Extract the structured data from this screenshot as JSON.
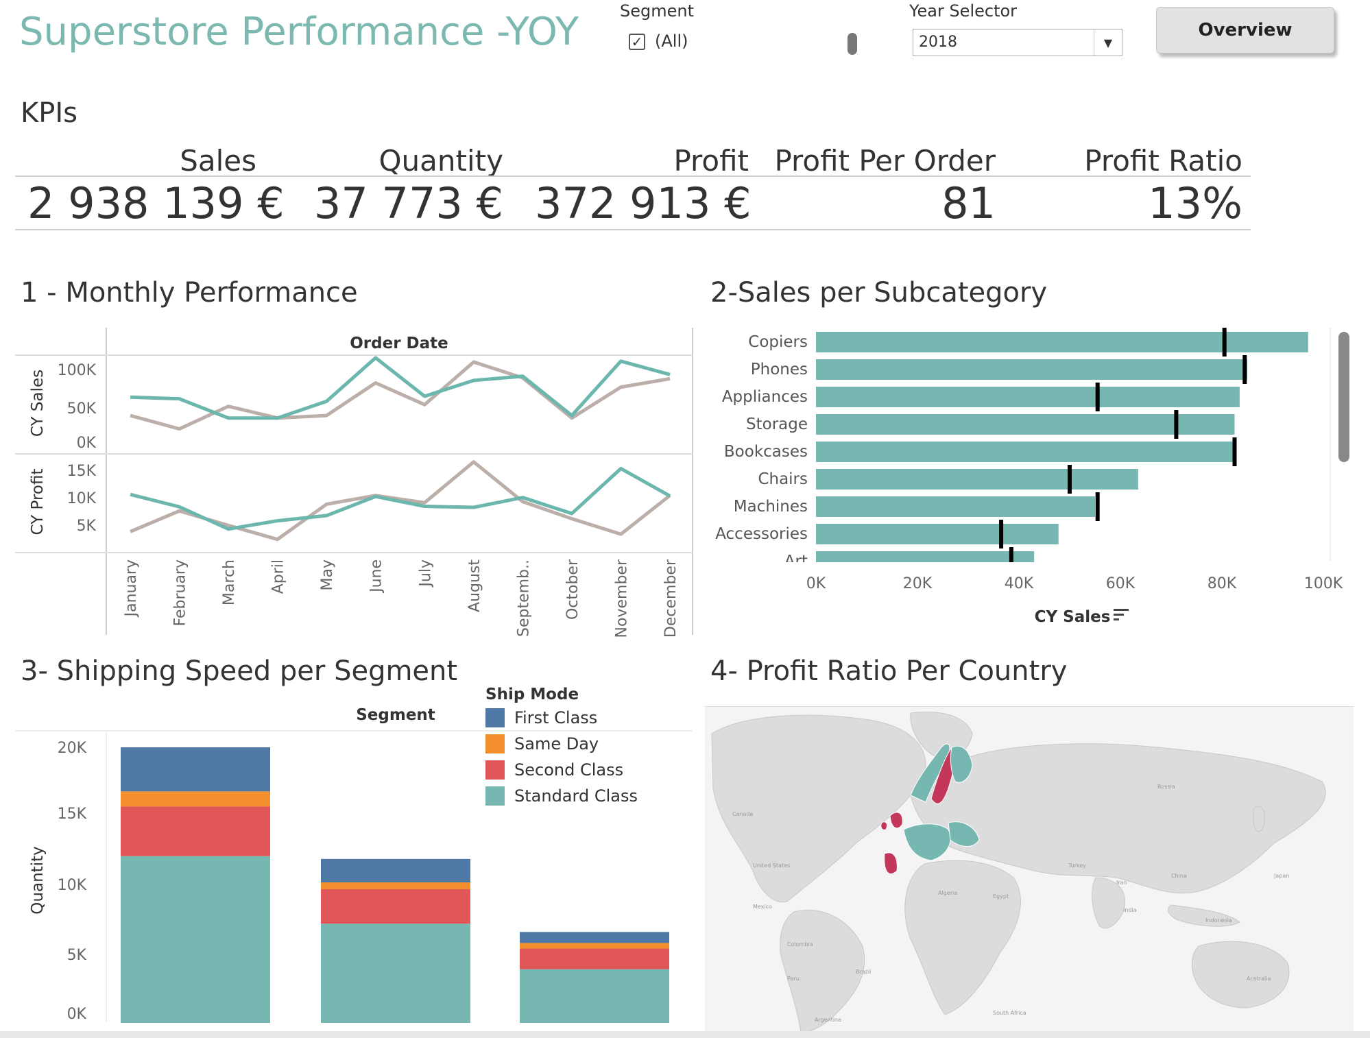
{
  "header": {
    "title": "Superstore Performance -YOY",
    "segment_filter": {
      "label": "Segment",
      "option_label": "(All)",
      "checked": true
    },
    "year_selector": {
      "label": "Year Selector",
      "value": "2018"
    },
    "overview_button": "Overview"
  },
  "kpis": {
    "section_title": "KPIs",
    "items": [
      {
        "label": "Sales",
        "value": "2 938 139 €"
      },
      {
        "label": "Quantity",
        "value": "37 773 €"
      },
      {
        "label": "Profit",
        "value": "372 913 €"
      },
      {
        "label": "Profit Per Order",
        "value": "81"
      },
      {
        "label": "Profit Ratio",
        "value": "13%"
      }
    ]
  },
  "colors": {
    "accent": "#7ab8b0",
    "current_year": "#6bb6ad",
    "previous_year": "#bcaea8",
    "first_class": "#4e79a7",
    "same_day": "#f28e2b",
    "second_class": "#e15759",
    "standard_class": "#76b7b2",
    "map_highlight": "#c2375a",
    "map_base": "#dcdcdc"
  },
  "monthly": {
    "title": "1 - Monthly Performance",
    "header": "Order Date",
    "sales_axis_label": "CY Sales",
    "profit_axis_label": "CY Profit",
    "sales_ticks": [
      "100K",
      "50K",
      "0K"
    ],
    "profit_ticks": [
      "15K",
      "10K",
      "5K"
    ],
    "months": [
      "January",
      "February",
      "March",
      "April",
      "May",
      "June",
      "July",
      "August",
      "Septemb..",
      "October",
      "November",
      "December"
    ]
  },
  "subcategory": {
    "title": "2-Sales per Subcategory",
    "axis_title": "CY Sales",
    "ticks": [
      "0K",
      "20K",
      "40K",
      "60K",
      "80K",
      "100K"
    ],
    "visible_label_partial": "Art"
  },
  "shipping": {
    "title": "3- Shipping Speed per Segment",
    "header": "Segment",
    "axis_label": "Quantity",
    "ticks": [
      "20K",
      "15K",
      "10K",
      "5K",
      "0K"
    ],
    "legend_title": "Ship Mode",
    "legend": [
      {
        "name": "First Class",
        "color": "#4e79a7"
      },
      {
        "name": "Same Day",
        "color": "#f28e2b"
      },
      {
        "name": "Second Class",
        "color": "#e15759"
      },
      {
        "name": "Standard Class",
        "color": "#76b7b2"
      }
    ]
  },
  "map": {
    "title": "4- Profit Ratio Per Country",
    "labels": [
      "Russia",
      "Canada",
      "United States",
      "Mexico",
      "Colombia",
      "Peru",
      "Brazil",
      "Argentina",
      "Algeria",
      "Egypt",
      "Turkey",
      "Iran",
      "China",
      "Japan",
      "India",
      "Indonesia",
      "Australia",
      "South Africa"
    ]
  },
  "chart_data": [
    {
      "type": "line",
      "title": "",
      "xlabel": "Order Date",
      "ylabel": "CY Sales",
      "categories": [
        "January",
        "February",
        "March",
        "April",
        "May",
        "June",
        "July",
        "August",
        "Septemb..",
        "October",
        "November",
        "December"
      ],
      "ylim": [
        0,
        110000
      ],
      "series": [
        {
          "values": [
            58000,
            56000,
            33000,
            33000,
            53000,
            105000,
            59000,
            78000,
            83000,
            36000,
            101000,
            85000
          ]
        },
        {
          "values": [
            36000,
            20000,
            47000,
            33000,
            36000,
            75000,
            49000,
            100000,
            81000,
            33000,
            70000,
            80000
          ]
        }
      ]
    },
    {
      "type": "line",
      "title": "",
      "xlabel": "Order Date",
      "ylabel": "CY Profit",
      "categories": [
        "January",
        "February",
        "March",
        "April",
        "May",
        "June",
        "July",
        "August",
        "Septemb..",
        "October",
        "November",
        "December"
      ],
      "ylim": [
        0,
        17000
      ],
      "series": [
        {
          "values": [
            10200,
            7800,
            3500,
            5100,
            6100,
            9800,
            7900,
            7700,
            9600,
            6500,
            15200,
            9900
          ]
        },
        {
          "values": [
            3000,
            7000,
            4200,
            1500,
            8300,
            10000,
            8600,
            16500,
            8800,
            5500,
            2500,
            10000
          ]
        }
      ]
    },
    {
      "type": "bar",
      "title": "",
      "xlabel": "CY Sales",
      "ylabel": "",
      "categories": [
        "Copiers",
        "Phones",
        "Appliances",
        "Storage",
        "Bookcases",
        "Chairs",
        "Machines",
        "Accessories",
        "Art"
      ],
      "xlim": [
        0,
        105000
      ],
      "series": [
        {
          "values": [
            97000,
            85000,
            83500,
            82500,
            82600,
            63500,
            55000,
            47800,
            43000
          ]
        },
        {
          "values": [
            80500,
            84500,
            55500,
            71000,
            82500,
            50000,
            55500,
            36500,
            38500
          ]
        }
      ]
    },
    {
      "type": "bar",
      "stacked": true,
      "title": "",
      "xlabel": "Segment",
      "ylabel": "Quantity",
      "ylim": [
        0,
        20000
      ],
      "categories": [
        "",
        "",
        ""
      ],
      "series": [
        {
          "name": "Standard Class",
          "values": [
            12100,
            7200,
            3900
          ]
        },
        {
          "name": "Second Class",
          "values": [
            3600,
            2500,
            1500
          ]
        },
        {
          "name": "Same Day",
          "values": [
            1100,
            500,
            400
          ]
        },
        {
          "name": "First Class",
          "values": [
            3200,
            1700,
            800
          ]
        }
      ]
    }
  ]
}
